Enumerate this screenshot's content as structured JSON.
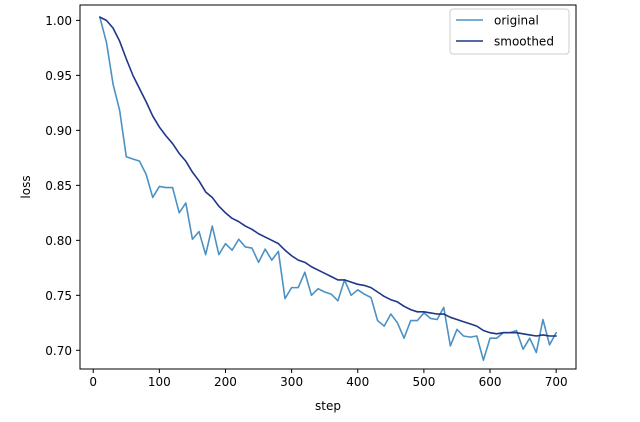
{
  "chart_data": {
    "type": "line",
    "title": "",
    "xlabel": "step",
    "ylabel": "loss",
    "xlim": [
      -20,
      730
    ],
    "ylim": [
      0.683,
      1.014
    ],
    "xticks": [
      0,
      100,
      200,
      300,
      400,
      500,
      600,
      700
    ],
    "yticks": [
      0.7,
      0.75,
      0.8,
      0.85,
      0.9,
      0.95,
      1.0
    ],
    "xtick_labels": [
      "0",
      "100",
      "200",
      "300",
      "400",
      "500",
      "600",
      "700"
    ],
    "ytick_labels": [
      "0.70",
      "0.75",
      "0.80",
      "0.85",
      "0.90",
      "0.95",
      "1.00"
    ],
    "grid": false,
    "legend_position": "top-right",
    "x": [
      10,
      20,
      30,
      40,
      50,
      60,
      70,
      80,
      90,
      100,
      110,
      120,
      130,
      140,
      150,
      160,
      170,
      180,
      190,
      200,
      210,
      220,
      230,
      240,
      250,
      260,
      270,
      280,
      290,
      300,
      310,
      320,
      330,
      340,
      350,
      360,
      370,
      380,
      390,
      400,
      410,
      420,
      430,
      440,
      450,
      460,
      470,
      480,
      490,
      500,
      510,
      520,
      530,
      540,
      550,
      560,
      570,
      580,
      590,
      600,
      610,
      620,
      630,
      640,
      650,
      660,
      670,
      680,
      690,
      700
    ],
    "series": [
      {
        "name": "original",
        "color": "#4c91c4",
        "values": [
          1.003,
          0.98,
          0.942,
          0.918,
          0.876,
          0.874,
          0.872,
          0.86,
          0.839,
          0.849,
          0.848,
          0.848,
          0.825,
          0.834,
          0.801,
          0.808,
          0.787,
          0.813,
          0.787,
          0.797,
          0.791,
          0.801,
          0.794,
          0.793,
          0.78,
          0.792,
          0.782,
          0.79,
          0.747,
          0.757,
          0.757,
          0.771,
          0.75,
          0.756,
          0.753,
          0.751,
          0.745,
          0.764,
          0.75,
          0.755,
          0.751,
          0.748,
          0.727,
          0.722,
          0.733,
          0.725,
          0.711,
          0.727,
          0.727,
          0.734,
          0.729,
          0.728,
          0.739,
          0.704,
          0.719,
          0.713,
          0.712,
          0.713,
          0.691,
          0.711,
          0.711,
          0.716,
          0.716,
          0.718,
          0.701,
          0.711,
          0.698,
          0.728,
          0.705,
          0.716
        ]
      },
      {
        "name": "smoothed",
        "color": "#1e3788",
        "values": [
          1.003,
          1.0,
          0.993,
          0.981,
          0.965,
          0.95,
          0.938,
          0.926,
          0.913,
          0.903,
          0.895,
          0.888,
          0.879,
          0.872,
          0.862,
          0.854,
          0.844,
          0.839,
          0.831,
          0.825,
          0.82,
          0.817,
          0.813,
          0.81,
          0.806,
          0.803,
          0.8,
          0.797,
          0.791,
          0.786,
          0.782,
          0.78,
          0.776,
          0.773,
          0.77,
          0.767,
          0.764,
          0.764,
          0.762,
          0.76,
          0.759,
          0.757,
          0.753,
          0.749,
          0.746,
          0.744,
          0.74,
          0.737,
          0.735,
          0.735,
          0.734,
          0.733,
          0.733,
          0.73,
          0.728,
          0.726,
          0.724,
          0.722,
          0.718,
          0.716,
          0.715,
          0.716,
          0.716,
          0.716,
          0.715,
          0.714,
          0.713,
          0.714,
          0.713,
          0.713
        ]
      }
    ]
  }
}
